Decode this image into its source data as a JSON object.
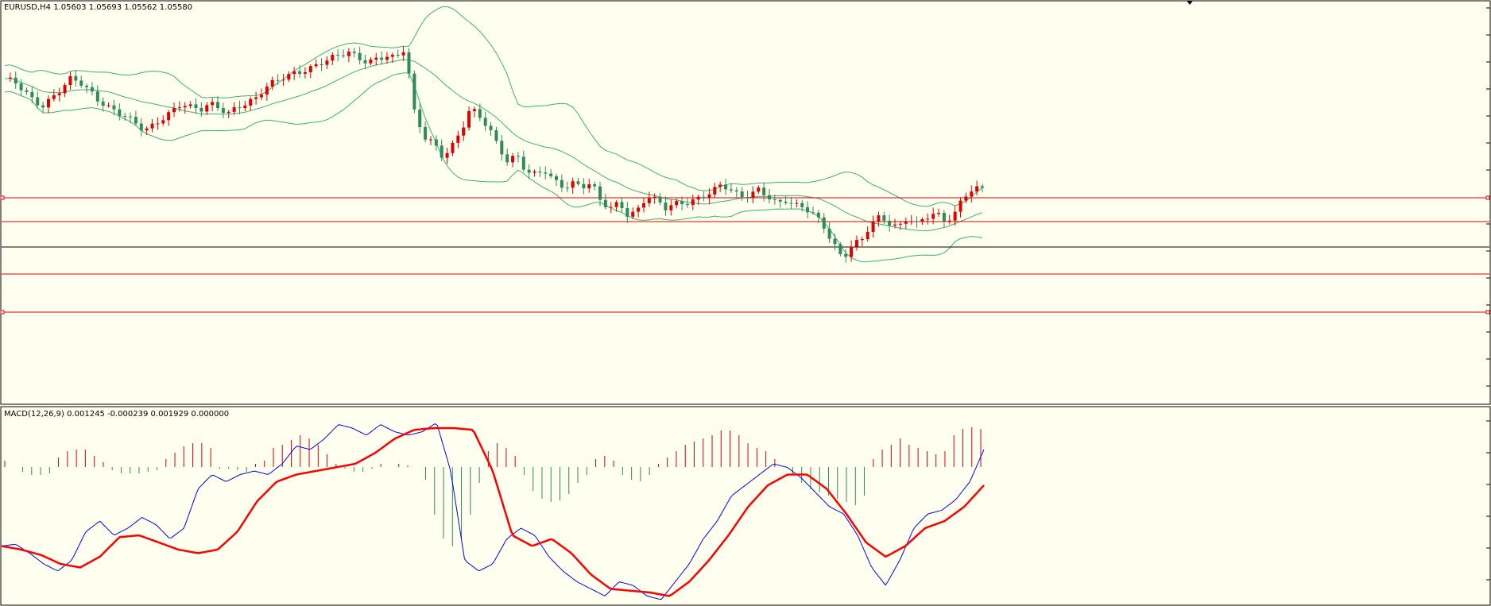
{
  "main_panel": {
    "header": "EURUSD,H4  1.05603 1.05693 1.05562 1.05580"
  },
  "macd_panel": {
    "header": "MACD(12,26,9) 0.001245 -0.000239 0.001929 0.000000"
  },
  "colors": {
    "background": "#fffff0",
    "bull_candle": "#2e8b57",
    "bear_candle": "#e00000",
    "bollinger": "#3cb371",
    "level_line": "#e00000",
    "price_line": "#000000",
    "macd_line": "#0000ff",
    "signal_line": "#ff0000",
    "hist_positive": "#e00000",
    "hist_negative": "#2e8b57"
  },
  "chart_data": [
    {
      "type": "line",
      "name": "price",
      "symbol": "EURUSD",
      "timeframe": "H4",
      "indicators": [
        "Bollinger Bands"
      ],
      "horizontal_levels_count": 4,
      "current_close": 1.0558,
      "close_path": [
        0.86,
        0.84,
        0.8,
        0.76,
        0.74,
        0.78,
        0.82,
        0.86,
        0.84,
        0.8,
        0.76,
        0.74,
        0.72,
        0.7,
        0.66,
        0.62,
        0.64,
        0.68,
        0.72,
        0.76,
        0.74,
        0.72,
        0.74,
        0.72,
        0.7,
        0.74,
        0.76,
        0.78,
        0.82,
        0.84,
        0.86,
        0.88,
        0.9,
        0.92,
        0.94,
        0.95,
        0.96,
        0.97,
        0.95,
        0.94,
        0.96,
        0.97,
        0.95,
        0.99,
        0.7,
        0.6,
        0.58,
        0.52,
        0.56,
        0.62,
        0.72,
        0.68,
        0.64,
        0.56,
        0.5,
        0.52,
        0.44,
        0.42,
        0.44,
        0.4,
        0.38,
        0.4,
        0.38,
        0.39,
        0.3,
        0.27,
        0.3,
        0.25,
        0.28,
        0.34,
        0.31,
        0.27,
        0.29,
        0.3,
        0.32,
        0.34,
        0.36,
        0.38,
        0.35,
        0.32,
        0.34,
        0.37,
        0.34,
        0.3,
        0.31,
        0.28,
        0.27,
        0.25,
        0.2,
        0.13,
        0.05,
        0.11,
        0.12,
        0.2,
        0.24,
        0.22,
        0.2,
        0.24,
        0.2,
        0.23,
        0.25,
        0.22,
        0.26,
        0.34,
        0.37,
        0.36
      ]
    },
    {
      "type": "line",
      "name": "MACD",
      "params": [
        12,
        26,
        9
      ],
      "values": [
        0.001245,
        -0.000239,
        0.001929,
        0.0
      ],
      "macd_path": [
        0.3,
        0.31,
        0.26,
        0.2,
        0.16,
        0.22,
        0.38,
        0.44,
        0.36,
        0.4,
        0.46,
        0.42,
        0.34,
        0.4,
        0.62,
        0.7,
        0.66,
        0.7,
        0.72,
        0.7,
        0.76,
        0.86,
        0.84,
        0.9,
        0.98,
        0.96,
        0.92,
        0.98,
        0.94,
        0.92,
        0.94,
        0.99,
        0.72,
        0.22,
        0.16,
        0.2,
        0.34,
        0.4,
        0.36,
        0.24,
        0.16,
        0.1,
        0.06,
        0.02,
        0.1,
        0.08,
        0.02,
        0.0,
        0.1,
        0.2,
        0.34,
        0.44,
        0.58,
        0.64,
        0.7,
        0.76,
        0.74,
        0.68,
        0.6,
        0.52,
        0.48,
        0.36,
        0.18,
        0.08,
        0.22,
        0.4,
        0.48,
        0.5,
        0.56,
        0.66,
        0.84
      ],
      "signal_path": [
        0.3,
        0.28,
        0.25,
        0.2,
        0.18,
        0.24,
        0.35,
        0.36,
        0.32,
        0.28,
        0.26,
        0.28,
        0.38,
        0.55,
        0.66,
        0.7,
        0.72,
        0.74,
        0.76,
        0.82,
        0.9,
        0.95,
        0.96,
        0.96,
        0.95,
        0.72,
        0.36,
        0.3,
        0.34,
        0.26,
        0.14,
        0.06,
        0.05,
        0.04,
        0.02,
        0.1,
        0.22,
        0.36,
        0.52,
        0.64,
        0.7,
        0.7,
        0.62,
        0.48,
        0.32,
        0.24,
        0.3,
        0.4,
        0.44,
        0.52,
        0.64
      ],
      "histogram": [
        0.04,
        0.0,
        -0.03,
        -0.05,
        -0.05,
        -0.04,
        0.06,
        0.1,
        0.11,
        0.11,
        0.07,
        0.03,
        -0.02,
        -0.04,
        -0.04,
        -0.04,
        -0.03,
        -0.02,
        0.05,
        0.09,
        0.13,
        0.15,
        0.15,
        0.12,
        -0.01,
        -0.01,
        -0.02,
        -0.03,
        0.02,
        0.04,
        0.12,
        0.14,
        0.17,
        0.2,
        0.18,
        0.14,
        0.08,
        0.02,
        -0.01,
        -0.03,
        -0.03,
        -0.01,
        0.02,
        0.0,
        0.02,
        0.01,
        0.0,
        -0.08,
        -0.3,
        -0.45,
        -0.5,
        -0.45,
        -0.3,
        -0.1,
        0.1,
        0.15,
        0.12,
        0.07,
        -0.05,
        -0.15,
        -0.2,
        -0.22,
        -0.21,
        -0.17,
        -0.1,
        -0.05,
        0.05,
        0.07,
        0.04,
        -0.05,
        -0.08,
        -0.09,
        -0.05,
        0.02,
        0.06,
        0.1,
        0.14,
        0.16,
        0.18,
        0.2,
        0.23,
        0.23,
        0.2,
        0.15,
        0.12,
        0.1,
        0.05,
        0.0,
        -0.05,
        -0.1,
        -0.14,
        -0.16,
        -0.18,
        -0.2,
        -0.22,
        -0.24,
        -0.18,
        0.05,
        0.11,
        0.14,
        0.18,
        0.14,
        0.12,
        0.1,
        0.08,
        0.1,
        0.2,
        0.24,
        0.25,
        0.24
      ]
    }
  ]
}
